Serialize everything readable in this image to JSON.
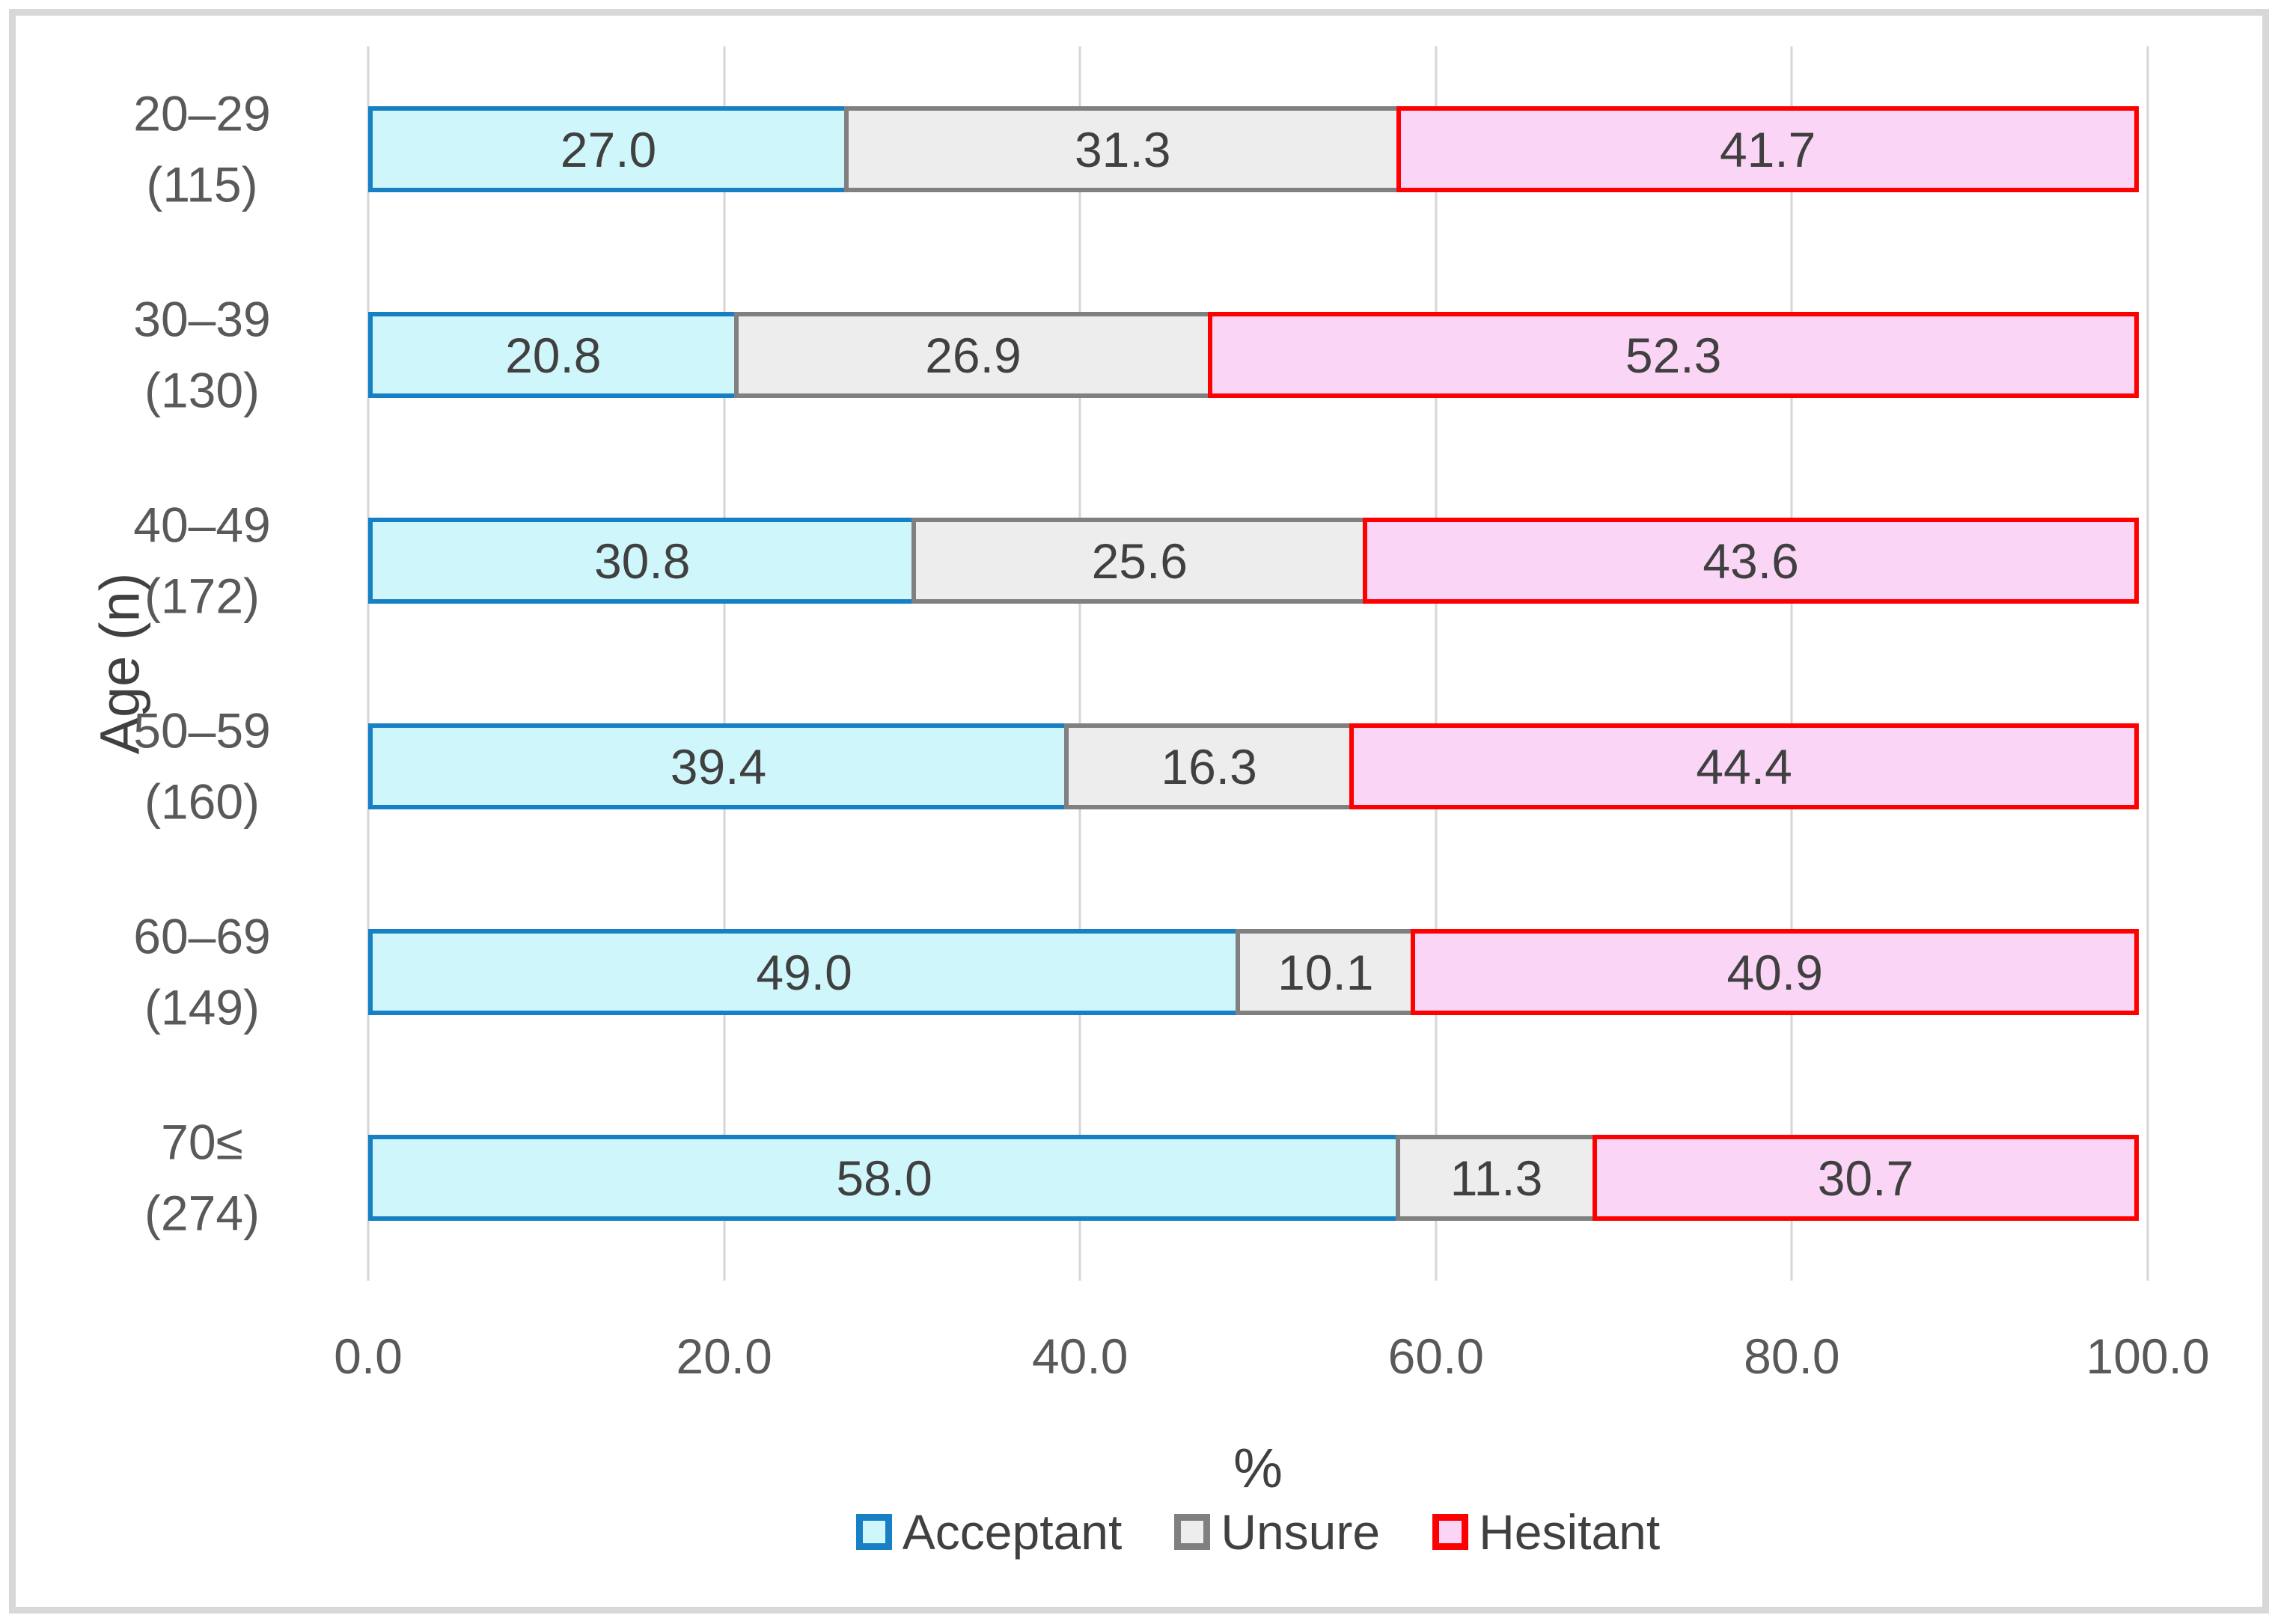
{
  "chart_data": {
    "type": "bar",
    "orientation": "horizontal",
    "stacked": true,
    "title": "",
    "xlabel": "%",
    "ylabel": "Age (n)",
    "xlim": [
      0,
      100
    ],
    "xticks": [
      "0.0",
      "20.0",
      "40.0",
      "60.0",
      "80.0",
      "100.0"
    ],
    "grid": true,
    "legend_position": "bottom",
    "value_decimals": 1,
    "categories": [
      {
        "range": "20–29",
        "n": 115
      },
      {
        "range": "30–39",
        "n": 130
      },
      {
        "range": "40–49",
        "n": 172
      },
      {
        "range": "50–59",
        "n": 160
      },
      {
        "range": "60–69",
        "n": 149
      },
      {
        "range": "70≤",
        "n": 274
      }
    ],
    "series": [
      {
        "name": "Acceptant",
        "fill": "#CFF6FB",
        "border": "#1780C4",
        "values": [
          27.0,
          20.8,
          30.8,
          39.4,
          49.0,
          58.0
        ]
      },
      {
        "name": "Unsure",
        "fill": "#EDEDED",
        "border": "#808080",
        "values": [
          31.3,
          26.9,
          25.6,
          16.3,
          10.1,
          11.3
        ]
      },
      {
        "name": "Hesitant",
        "fill": "#FBD5F6",
        "border": "#FF0000",
        "values": [
          41.7,
          52.3,
          43.6,
          44.4,
          40.9,
          30.7
        ]
      }
    ],
    "colors": {
      "gridline": "#d6d6d6",
      "frame_border": "#d8d8d8",
      "value_text": "#404040",
      "axis_text": "#595959",
      "axis_title_text": "#404040"
    }
  }
}
